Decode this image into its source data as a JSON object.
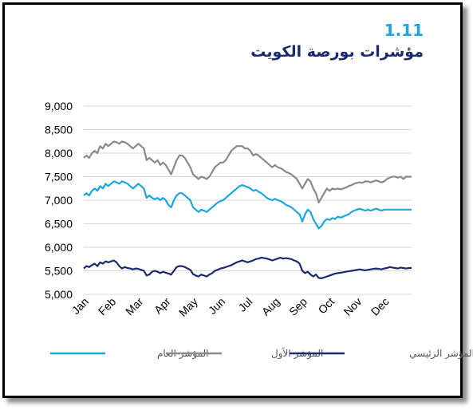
{
  "figure": {
    "number": "1.11",
    "title": "مؤشرات بورصة الكويت"
  },
  "chart_data": {
    "type": "line",
    "title": "مؤشرات بورصة الكويت",
    "xlabel": "",
    "ylabel": "",
    "x_tick_labels": [
      "Jan",
      "Feb",
      "Mar",
      "Apr",
      "May",
      "Jun",
      "Jul",
      "Aug",
      "Sep",
      "Oct",
      "Nov",
      "Dec"
    ],
    "y_ticks": [
      5000,
      5500,
      6000,
      6500,
      7000,
      7500,
      8000,
      8500,
      9000
    ],
    "y_tick_labels": [
      "5,000",
      "5,500",
      "6,000",
      "6,500",
      "7,000",
      "7,500",
      "8,000",
      "8,500",
      "9,000"
    ],
    "ylim": [
      5000,
      9000
    ],
    "grid": "horizontal",
    "legend_position": "bottom",
    "series": [
      {
        "name": "المؤشر العام",
        "color": "#1aa7e0",
        "x": [
          0,
          0.1,
          0.2,
          0.3,
          0.4,
          0.5,
          0.6,
          0.7,
          0.8,
          0.9,
          1,
          1.1,
          1.2,
          1.3,
          1.4,
          1.5,
          1.6,
          1.7,
          1.8,
          1.9,
          2,
          2.1,
          2.2,
          2.3,
          2.4,
          2.5,
          2.6,
          2.7,
          2.8,
          2.9,
          3,
          3.1,
          3.2,
          3.3,
          3.4,
          3.5,
          3.6,
          3.7,
          3.8,
          3.9,
          4,
          4.1,
          4.2,
          4.3,
          4.4,
          4.5,
          4.6,
          4.7,
          4.8,
          4.9,
          5,
          5.1,
          5.2,
          5.3,
          5.4,
          5.5,
          5.6,
          5.7,
          5.8,
          5.9,
          6,
          6.1,
          6.2,
          6.3,
          6.4,
          6.5,
          6.6,
          6.7,
          6.8,
          6.9,
          7,
          7.1,
          7.2,
          7.3,
          7.4,
          7.5,
          7.6,
          7.7,
          7.8,
          7.9,
          8,
          8.1,
          8.2,
          8.3,
          8.4,
          8.5,
          8.6,
          8.7,
          8.8,
          8.9,
          9,
          9.1,
          9.2,
          9.3,
          9.4,
          9.5,
          9.6,
          9.7,
          9.8,
          9.9,
          10,
          10.1,
          10.2,
          10.3,
          10.4,
          10.5,
          10.6,
          10.7,
          10.8,
          10.9,
          11,
          11.1,
          11.2,
          11.3,
          11.4,
          11.5,
          11.6,
          11.7,
          11.8,
          11.9,
          12
        ],
        "values": [
          7100,
          7150,
          7100,
          7200,
          7250,
          7200,
          7300,
          7250,
          7350,
          7300,
          7350,
          7400,
          7380,
          7350,
          7400,
          7380,
          7350,
          7300,
          7250,
          7300,
          7350,
          7300,
          7250,
          7050,
          7100,
          7050,
          7020,
          7050,
          7000,
          7050,
          7000,
          6900,
          6850,
          7000,
          7100,
          7150,
          7150,
          7100,
          7050,
          7000,
          6850,
          6800,
          6750,
          6800,
          6780,
          6750,
          6800,
          6850,
          6900,
          6950,
          6980,
          7000,
          7050,
          7100,
          7150,
          7200,
          7250,
          7300,
          7320,
          7300,
          7280,
          7250,
          7200,
          7220,
          7180,
          7150,
          7100,
          7050,
          7020,
          7000,
          7030,
          7000,
          6980,
          6950,
          6900,
          6880,
          6850,
          6800,
          6750,
          6700,
          6550,
          6700,
          6800,
          6750,
          6600,
          6500,
          6400,
          6450,
          6550,
          6600,
          6580,
          6620,
          6600,
          6650,
          6630,
          6650,
          6680,
          6700,
          6750,
          6780,
          6800,
          6820,
          6800,
          6780,
          6800,
          6780,
          6800,
          6820,
          6800,
          6780,
          6800,
          6800,
          6800,
          6800,
          6800,
          6800,
          6800,
          6800,
          6800,
          6800,
          6800
        ]
      },
      {
        "name": "المؤشر الأول",
        "color": "#8a8a8a",
        "x": [
          0,
          0.1,
          0.2,
          0.3,
          0.4,
          0.5,
          0.6,
          0.7,
          0.8,
          0.9,
          1,
          1.1,
          1.2,
          1.3,
          1.4,
          1.5,
          1.6,
          1.7,
          1.8,
          1.9,
          2,
          2.1,
          2.2,
          2.3,
          2.4,
          2.5,
          2.6,
          2.7,
          2.8,
          2.9,
          3,
          3.1,
          3.2,
          3.3,
          3.4,
          3.5,
          3.6,
          3.7,
          3.8,
          3.9,
          4,
          4.1,
          4.2,
          4.3,
          4.4,
          4.5,
          4.6,
          4.7,
          4.8,
          4.9,
          5,
          5.1,
          5.2,
          5.3,
          5.4,
          5.5,
          5.6,
          5.7,
          5.8,
          5.9,
          6,
          6.1,
          6.2,
          6.3,
          6.4,
          6.5,
          6.6,
          6.7,
          6.8,
          6.9,
          7,
          7.1,
          7.2,
          7.3,
          7.4,
          7.5,
          7.6,
          7.7,
          7.8,
          7.9,
          8,
          8.1,
          8.2,
          8.3,
          8.4,
          8.5,
          8.6,
          8.7,
          8.8,
          8.9,
          9,
          9.1,
          9.2,
          9.3,
          9.4,
          9.5,
          9.6,
          9.7,
          9.8,
          9.9,
          10,
          10.1,
          10.2,
          10.3,
          10.4,
          10.5,
          10.6,
          10.7,
          10.8,
          10.9,
          11,
          11.1,
          11.2,
          11.3,
          11.4,
          11.5,
          11.6,
          11.7,
          11.8,
          11.9,
          12
        ],
        "values": [
          7900,
          7950,
          7900,
          8000,
          8050,
          8000,
          8150,
          8100,
          8200,
          8150,
          8200,
          8250,
          8230,
          8200,
          8250,
          8230,
          8200,
          8150,
          8100,
          8150,
          8200,
          8150,
          8100,
          7850,
          7900,
          7850,
          7800,
          7850,
          7750,
          7800,
          7750,
          7650,
          7550,
          7700,
          7850,
          7950,
          7950,
          7900,
          7800,
          7700,
          7550,
          7500,
          7450,
          7500,
          7480,
          7450,
          7500,
          7600,
          7700,
          7750,
          7800,
          7800,
          7850,
          7950,
          8050,
          8100,
          8150,
          8150,
          8150,
          8100,
          8100,
          8050,
          7950,
          7980,
          7950,
          7900,
          7850,
          7800,
          7750,
          7700,
          7750,
          7700,
          7680,
          7650,
          7600,
          7580,
          7550,
          7500,
          7450,
          7350,
          7250,
          7350,
          7450,
          7400,
          7250,
          7150,
          6950,
          7050,
          7150,
          7250,
          7200,
          7250,
          7230,
          7250,
          7230,
          7250,
          7270,
          7300,
          7320,
          7350,
          7370,
          7380,
          7370,
          7400,
          7400,
          7380,
          7400,
          7420,
          7400,
          7380,
          7400,
          7450,
          7480,
          7500,
          7500,
          7480,
          7500,
          7450,
          7500,
          7500,
          7500
        ]
      },
      {
        "name": "المؤشر الرئيسي",
        "color": "#1a2a6c",
        "x": [
          0,
          0.1,
          0.2,
          0.3,
          0.4,
          0.5,
          0.6,
          0.7,
          0.8,
          0.9,
          1,
          1.1,
          1.2,
          1.3,
          1.4,
          1.5,
          1.6,
          1.7,
          1.8,
          1.9,
          2,
          2.1,
          2.2,
          2.3,
          2.4,
          2.5,
          2.6,
          2.7,
          2.8,
          2.9,
          3,
          3.1,
          3.2,
          3.3,
          3.4,
          3.5,
          3.6,
          3.7,
          3.8,
          3.9,
          4,
          4.1,
          4.2,
          4.3,
          4.4,
          4.5,
          4.6,
          4.7,
          4.8,
          4.9,
          5,
          5.1,
          5.2,
          5.3,
          5.4,
          5.5,
          5.6,
          5.7,
          5.8,
          5.9,
          6,
          6.1,
          6.2,
          6.3,
          6.4,
          6.5,
          6.6,
          6.7,
          6.8,
          6.9,
          7,
          7.1,
          7.2,
          7.3,
          7.4,
          7.5,
          7.6,
          7.7,
          7.8,
          7.9,
          8,
          8.1,
          8.2,
          8.3,
          8.4,
          8.5,
          8.6,
          8.7,
          8.8,
          8.9,
          9,
          9.1,
          9.2,
          9.3,
          9.4,
          9.5,
          9.6,
          9.7,
          9.8,
          9.9,
          10,
          10.1,
          10.2,
          10.3,
          10.4,
          10.5,
          10.6,
          10.7,
          10.8,
          10.9,
          11,
          11.1,
          11.2,
          11.3,
          11.4,
          11.5,
          11.6,
          11.7,
          11.8,
          11.9,
          12
        ],
        "values": [
          5550,
          5600,
          5580,
          5620,
          5650,
          5600,
          5680,
          5650,
          5700,
          5680,
          5700,
          5720,
          5680,
          5600,
          5550,
          5580,
          5560,
          5550,
          5530,
          5550,
          5540,
          5520,
          5500,
          5400,
          5420,
          5480,
          5500,
          5480,
          5450,
          5480,
          5460,
          5440,
          5420,
          5500,
          5580,
          5600,
          5600,
          5580,
          5550,
          5520,
          5430,
          5400,
          5380,
          5420,
          5400,
          5380,
          5420,
          5450,
          5500,
          5520,
          5550,
          5560,
          5580,
          5600,
          5620,
          5650,
          5680,
          5700,
          5720,
          5700,
          5680,
          5700,
          5720,
          5750,
          5760,
          5780,
          5770,
          5760,
          5740,
          5720,
          5740,
          5760,
          5780,
          5760,
          5770,
          5760,
          5750,
          5720,
          5700,
          5650,
          5500,
          5450,
          5480,
          5420,
          5380,
          5420,
          5350,
          5340,
          5360,
          5380,
          5400,
          5420,
          5440,
          5450,
          5460,
          5470,
          5480,
          5490,
          5500,
          5510,
          5520,
          5530,
          5520,
          5510,
          5520,
          5530,
          5540,
          5550,
          5540,
          5530,
          5550,
          5560,
          5580,
          5570,
          5560,
          5550,
          5570,
          5560,
          5550,
          5560,
          5560
        ]
      }
    ]
  }
}
